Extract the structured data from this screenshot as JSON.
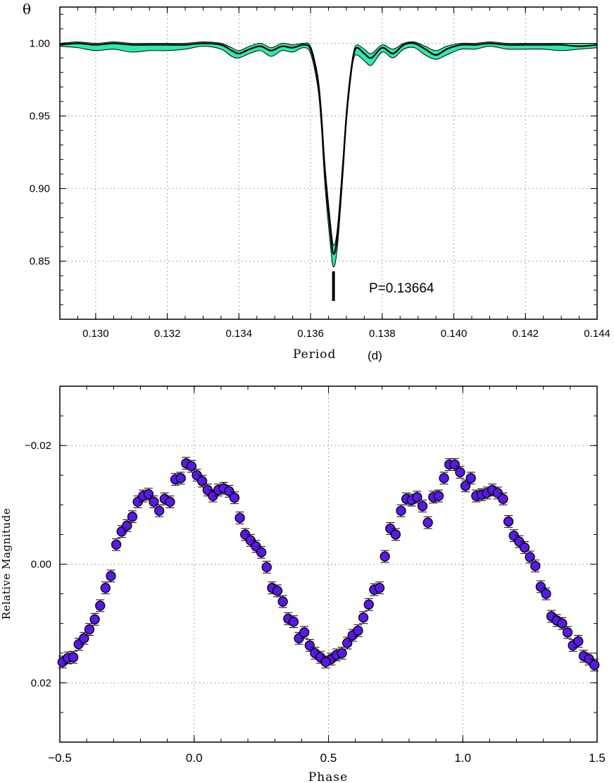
{
  "chart_data": [
    {
      "type": "line",
      "ylabel": "θ",
      "xlabel_word": "Period",
      "xlabel_unit": "(d)",
      "xlim": [
        0.129,
        0.144
      ],
      "ylim": [
        0.81,
        1.025
      ],
      "x_ticks": [
        0.13,
        0.132,
        0.134,
        0.136,
        0.138,
        0.14,
        0.142,
        0.144
      ],
      "x_tick_labels": [
        "0.130",
        "0.132",
        "0.134",
        "0.136",
        "0.138",
        "0.140",
        "0.142",
        "0.144"
      ],
      "y_ticks": [
        0.85,
        0.9,
        0.95,
        1.0
      ],
      "y_tick_labels": [
        "0.85",
        "0.90",
        "0.95",
        "1.00"
      ],
      "grid": true,
      "band_color": "#2ee8b0",
      "line_color": "#000000",
      "annotation": "P=0.13664",
      "marker_x": 0.13664,
      "series": [
        {
          "x": [
            0.129,
            0.1295,
            0.13,
            0.1305,
            0.131,
            0.1315,
            0.132,
            0.1325,
            0.133,
            0.1335,
            0.1338,
            0.134,
            0.1343,
            0.1346,
            0.1349,
            0.1352,
            0.1355,
            0.1358,
            0.136,
            0.1362,
            0.1363,
            0.1364,
            0.13655,
            0.13664,
            0.13675,
            0.1369,
            0.137,
            0.1371,
            0.1372,
            0.1373,
            0.1375,
            0.1377,
            0.138,
            0.1383,
            0.1386,
            0.1389,
            0.1392,
            0.1395,
            0.1398,
            0.1402,
            0.1406,
            0.141,
            0.1415,
            0.142,
            0.1425,
            0.143,
            0.1435,
            0.144
          ],
          "y": [
            0.999,
            1.0,
            0.999,
            1.0,
            0.999,
            0.999,
            0.999,
            0.999,
            1.0,
            0.999,
            0.995,
            0.993,
            0.996,
            0.998,
            0.995,
            0.998,
            0.997,
            0.999,
            0.996,
            0.975,
            0.95,
            0.912,
            0.872,
            0.855,
            0.868,
            0.915,
            0.95,
            0.975,
            0.992,
            0.997,
            0.993,
            0.99,
            0.997,
            0.993,
            0.999,
            1.0,
            0.996,
            0.992,
            0.996,
            0.999,
            0.999,
            1.0,
            0.999,
            0.999,
            0.999,
            0.999,
            0.998,
            0.999
          ],
          "lower": [
            0.998,
            0.997,
            0.995,
            0.996,
            0.994,
            0.995,
            0.995,
            0.996,
            0.998,
            0.996,
            0.991,
            0.99,
            0.993,
            0.995,
            0.991,
            0.995,
            0.994,
            0.997,
            0.993,
            0.97,
            0.943,
            0.903,
            0.862,
            0.846,
            0.86,
            0.908,
            0.945,
            0.971,
            0.989,
            0.992,
            0.988,
            0.985,
            0.994,
            0.99,
            0.996,
            0.997,
            0.992,
            0.989,
            0.992,
            0.996,
            0.996,
            0.998,
            0.996,
            0.996,
            0.996,
            0.995,
            0.996,
            0.997
          ],
          "upper": [
            1.0,
            1.001,
            1.0,
            1.001,
            1.0,
            1.0,
            1.0,
            1.0,
            1.001,
            1.0,
            0.997,
            0.995,
            0.998,
            1.0,
            0.997,
            1.0,
            0.999,
            1.0,
            0.998,
            0.978,
            0.954,
            0.917,
            0.878,
            0.861,
            0.873,
            0.919,
            0.953,
            0.977,
            0.994,
            0.999,
            0.996,
            0.993,
            0.999,
            0.996,
            1.0,
            1.001,
            0.998,
            0.995,
            0.998,
            1.0,
            1.0,
            1.001,
            1.0,
            1.0,
            1.0,
            1.0,
            1.0,
            1.0
          ]
        }
      ]
    },
    {
      "type": "scatter",
      "xlabel": "Phase",
      "ylabel": "Relative Magnitude",
      "xlim": [
        -0.5,
        1.5
      ],
      "ylim": [
        0.03,
        -0.03
      ],
      "y_inverted": true,
      "x_ticks": [
        -0.5,
        0.0,
        0.5,
        1.0,
        1.5
      ],
      "x_tick_labels": [
        "−0.5",
        "0.0",
        "0.5",
        "1.0",
        "1.5"
      ],
      "y_ticks": [
        -0.02,
        0.0,
        0.02
      ],
      "y_tick_labels": [
        "−0.02",
        "0.00",
        "0.02"
      ],
      "grid": true,
      "marker_color": "#5a18e8",
      "error_bar": 0.001,
      "phases": [
        -0.49,
        -0.47,
        -0.45,
        -0.43,
        -0.41,
        -0.39,
        -0.37,
        -0.35,
        -0.33,
        -0.31,
        -0.29,
        -0.27,
        -0.25,
        -0.23,
        -0.21,
        -0.19,
        -0.17,
        -0.15,
        -0.13,
        -0.11,
        -0.09,
        -0.07,
        -0.05,
        -0.03,
        -0.01,
        0.01,
        0.03,
        0.05,
        0.07,
        0.09,
        0.11,
        0.13,
        0.15,
        0.17,
        0.19,
        0.21,
        0.23,
        0.25,
        0.27,
        0.29,
        0.31,
        0.33,
        0.35,
        0.37,
        0.39,
        0.41,
        0.43,
        0.45,
        0.47,
        0.49
      ],
      "magnitudes": [
        0.0165,
        0.0158,
        0.0157,
        0.0135,
        0.0125,
        0.011,
        0.0093,
        0.007,
        0.004,
        0.002,
        -0.0033,
        -0.0055,
        -0.0065,
        -0.008,
        -0.0105,
        -0.0115,
        -0.0118,
        -0.0105,
        -0.009,
        -0.011,
        -0.0105,
        -0.0143,
        -0.0145,
        -0.017,
        -0.0165,
        -0.015,
        -0.014,
        -0.0125,
        -0.0115,
        -0.0125,
        -0.0128,
        -0.0123,
        -0.0112,
        -0.0078,
        -0.005,
        -0.004,
        -0.003,
        -0.002,
        0.0005,
        0.004,
        0.0045,
        0.0063,
        0.0092,
        0.0097,
        0.0125,
        0.0115,
        0.0137,
        0.015,
        0.0157,
        0.0165
      ],
      "magnitudes_alt": [
        0.016,
        0.0153,
        0.015,
        0.0133,
        0.012,
        0.0112,
        0.009,
        0.0068,
        0.0043,
        0.004,
        -0.0013,
        -0.006,
        -0.005,
        -0.009,
        -0.011,
        -0.0108,
        -0.0113,
        -0.0098,
        -0.007,
        -0.0113,
        -0.0115,
        -0.0145,
        -0.0168,
        -0.0168,
        -0.0155,
        -0.0132,
        -0.0145,
        -0.0115,
        -0.0117,
        -0.012,
        -0.0125,
        -0.012,
        -0.011,
        -0.0072,
        -0.0048,
        -0.0038,
        -0.0028,
        -0.0012,
        0.0003,
        0.0038,
        0.005,
        0.0088,
        0.0095,
        0.01,
        0.0115,
        0.0137,
        0.013,
        0.0155,
        0.016,
        0.017
      ]
    }
  ]
}
